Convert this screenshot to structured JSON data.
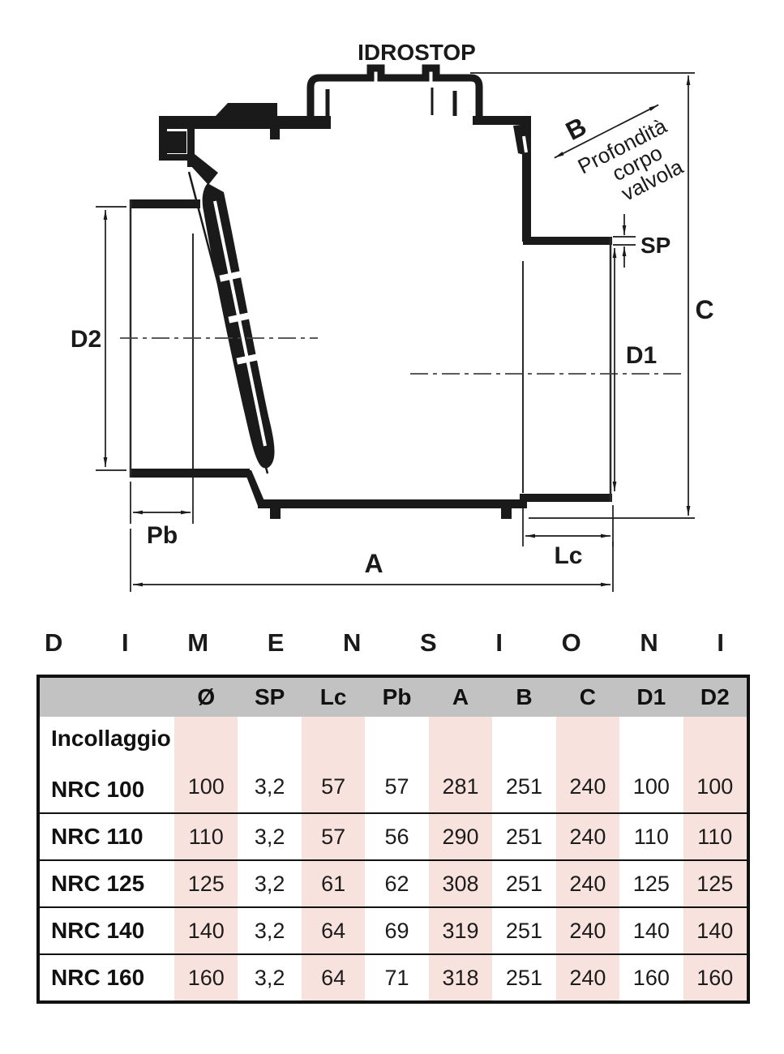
{
  "drawing": {
    "title": "IDROSTOP",
    "labels": {
      "B": "B",
      "SP": "SP",
      "C": "C",
      "D1": "D1",
      "D2": "D2",
      "Pb": "Pb",
      "A": "A",
      "Lc": "Lc"
    },
    "note": [
      "Profondità",
      "corpo",
      "valvola"
    ]
  },
  "table": {
    "heading": "DIMENSIONI",
    "columns": [
      "Ø",
      "SP",
      "Lc",
      "Pb",
      "A",
      "B",
      "C",
      "D1",
      "D2"
    ],
    "group_label": "Incollaggio",
    "rows": [
      {
        "label": "NRC 100",
        "values": [
          "100",
          "3,2",
          "57",
          "57",
          "281",
          "251",
          "240",
          "100",
          "100"
        ]
      },
      {
        "label": "NRC 110",
        "values": [
          "110",
          "3,2",
          "57",
          "56",
          "290",
          "251",
          "240",
          "110",
          "110"
        ]
      },
      {
        "label": "NRC 125",
        "values": [
          "125",
          "3,2",
          "61",
          "62",
          "308",
          "251",
          "240",
          "125",
          "125"
        ]
      },
      {
        "label": "NRC 140",
        "values": [
          "140",
          "3,2",
          "64",
          "69",
          "319",
          "251",
          "240",
          "140",
          "140"
        ]
      },
      {
        "label": "NRC 160",
        "values": [
          "160",
          "3,2",
          "64",
          "71",
          "318",
          "251",
          "240",
          "160",
          "160"
        ]
      }
    ],
    "colors": {
      "header_bg": "#c2c2c2",
      "stripe_pink": "#f8e2de",
      "line_black": "#1a1a1a"
    }
  }
}
